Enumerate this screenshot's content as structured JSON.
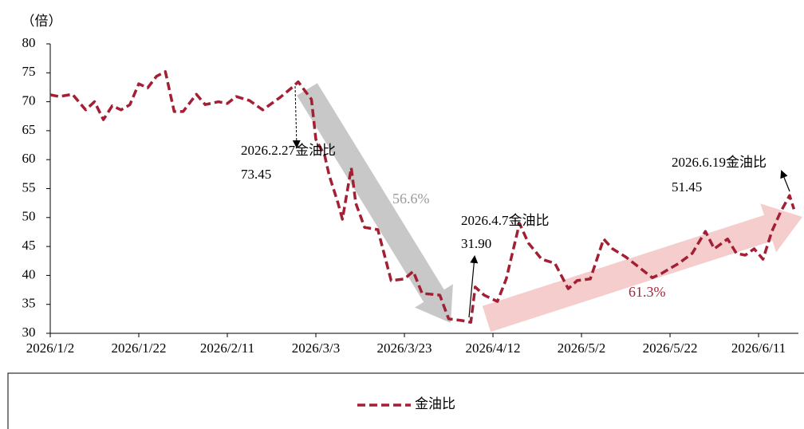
{
  "chart_data": {
    "type": "line",
    "y_label": "（倍）",
    "x": [
      "2026/1/2",
      "2026/1/4",
      "2026/1/7",
      "2026/1/10",
      "2026/1/12",
      "2026/1/14",
      "2026/1/16",
      "2026/1/18",
      "2026/1/20",
      "2026/1/22",
      "2026/1/24",
      "2026/1/26",
      "2026/1/28",
      "2026/1/30",
      "2026/2/1",
      "2026/2/4",
      "2026/2/6",
      "2026/2/9",
      "2026/2/11",
      "2026/2/13",
      "2026/2/16",
      "2026/2/19",
      "2026/2/23",
      "2026/2/26",
      "2026/2/27",
      "2026/3/2",
      "2026/3/3",
      "2026/3/5",
      "2026/3/6",
      "2026/3/8",
      "2026/3/9",
      "2026/3/11",
      "2026/3/12",
      "2026/3/14",
      "2026/3/17",
      "2026/3/20",
      "2026/3/23",
      "2026/3/25",
      "2026/3/27",
      "2026/3/31",
      "2026/4/2",
      "2026/4/5",
      "2026/4/7",
      "2026/4/8",
      "2026/4/10",
      "2026/4/13",
      "2026/4/15",
      "2026/4/18",
      "2026/4/20",
      "2026/4/23",
      "2026/4/26",
      "2026/4/29",
      "2026/5/1",
      "2026/5/4",
      "2026/5/7",
      "2026/5/9",
      "2026/5/12",
      "2026/5/15",
      "2026/5/18",
      "2026/5/20",
      "2026/5/24",
      "2026/5/27",
      "2026/5/30",
      "2026/6/1",
      "2026/6/4",
      "2026/6/6",
      "2026/6/8",
      "2026/6/10",
      "2026/6/12",
      "2026/6/14",
      "2026/6/16",
      "2026/6/18",
      "2026/6/19"
    ],
    "series": [
      {
        "name": "金油比",
        "color": "#a31f34",
        "values": [
          71.2,
          70.9,
          71.3,
          68.6,
          70,
          66.9,
          69.3,
          68.6,
          69.5,
          73.1,
          72.4,
          74.4,
          75.2,
          68.3,
          68.3,
          71.3,
          69.5,
          70,
          69.7,
          70.9,
          70.2,
          68.6,
          70.8,
          72.7,
          73.45,
          70.4,
          63.5,
          60.7,
          57.3,
          52.5,
          49.7,
          58.6,
          52.5,
          48.3,
          47.9,
          39.1,
          39.4,
          40.7,
          36.9,
          36.6,
          32.5,
          32.2,
          31.9,
          38,
          36.6,
          35.5,
          39.4,
          49,
          45.6,
          42.8,
          42.1,
          37.7,
          39.1,
          39.4,
          46.3,
          44.6,
          43.2,
          41.4,
          39.6,
          40.3,
          42.1,
          43.8,
          47.6,
          44.6,
          46.3,
          43.8,
          43.5,
          44.6,
          42.8,
          47.6,
          51,
          53.8,
          51.45
        ]
      }
    ],
    "xlim": [
      "2026/1/2",
      "2026/6/20"
    ],
    "xticks": [
      "2026/1/2",
      "2026/1/22",
      "2026/2/11",
      "2026/3/3",
      "2026/3/23",
      "2026/4/12",
      "2026/5/2",
      "2026/5/22",
      "2026/6/11"
    ],
    "ylim": [
      30,
      80
    ],
    "yticks": [
      30,
      35,
      40,
      45,
      50,
      55,
      60,
      65,
      70,
      75,
      80
    ],
    "annotations": [
      {
        "lines": [
          "2026.2.27金油比",
          "73.45"
        ]
      },
      {
        "lines": [
          "2026.4.7金油比",
          "31.90"
        ]
      },
      {
        "lines": [
          "2026.6.19金油比",
          "51.45"
        ]
      }
    ],
    "trend_labels": [
      "56.6%",
      "61.3%"
    ]
  }
}
